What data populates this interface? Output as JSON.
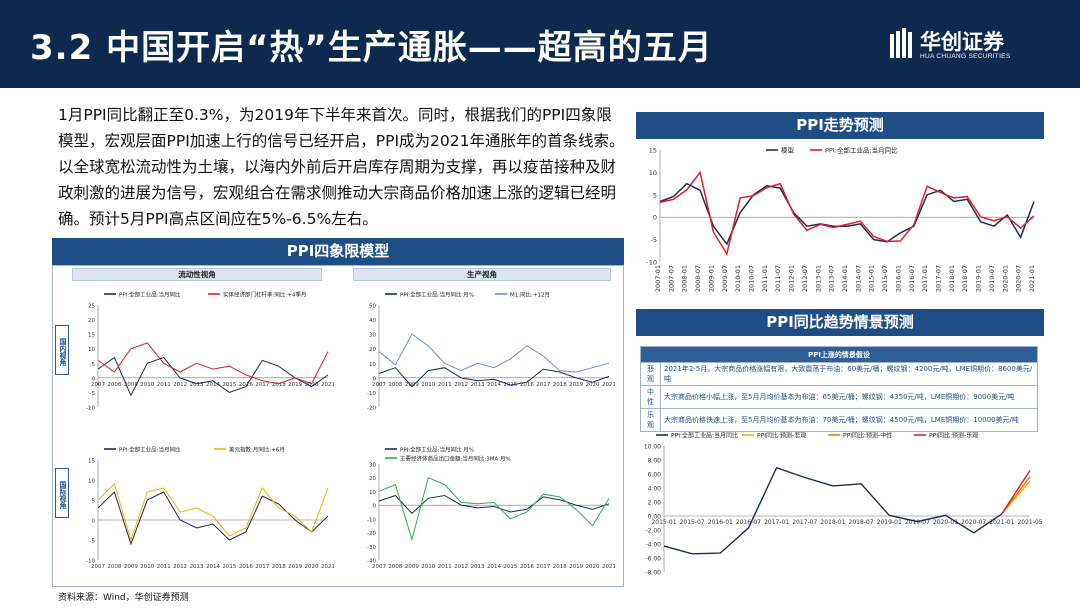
{
  "header": {
    "title": "3.2 中国开启“热”生产通胀——超高的五月",
    "logo_cn": "华创证券",
    "logo_en": "HUA CHUANG SECURITIES"
  },
  "body_text": "1月PPI同比翻正至0.3%，为2019年下半年来首次。同时，根据我们的PPI四象限模型，宏观层面PPI加速上行的信号已经开启，PPI成为2021年通胀年的首条线索。以全球宽松流动性为土壤，以海内外前后开启库存周期为支撑，再以疫苗接种及财政刺激的进展为信号，宏观组合在需求侧推动大宗商品价格加速上涨的逻辑已经明确。预计5月PPI高点区间应在5%-6.5%左右。",
  "quad": {
    "head": "PPI四象限模型",
    "col_heads": [
      "流动性视角",
      "生产视角"
    ],
    "row_labels": [
      "国内视角",
      "国际视角"
    ]
  },
  "trend": {
    "head": "PPI走势预测"
  },
  "scenario": {
    "head": "PPI同比趋势情景预测",
    "table_title": "PPI上涨的情景假设",
    "rows": [
      {
        "label": "悲观",
        "text": "2021年2-5月，大宗商品价格涨幅有限，大致震荡于布油：60美元/桶；螺纹钢：4200元/吨，LME铜期价：8600美元/吨"
      },
      {
        "label": "中性",
        "text": "大宗商品价格小幅上涨，至5月月均价基本为布油：65美元/桶；螺纹钢：4350元/吨，LME铜期价：9000美元/吨"
      },
      {
        "label": "乐观",
        "text": "大宗商品价格快速上涨，至5月月均价基本为布油：70美元/桶；螺纹钢：4500元/吨，LME铜期价：10000美元/吨"
      }
    ]
  },
  "source": "资料来源：Wind，华创证券预测",
  "chart_data": [
    {
      "type": "line",
      "title": "PPI走势预测",
      "x": [
        "2007-01",
        "2007-07",
        "2008-01",
        "2008-07",
        "2009-01",
        "2009-07",
        "2010-01",
        "2010-07",
        "2011-01",
        "2011-07",
        "2012-01",
        "2012-07",
        "2013-01",
        "2013-07",
        "2014-01",
        "2014-07",
        "2015-01",
        "2015-07",
        "2016-01",
        "2016-07",
        "2017-01",
        "2017-07",
        "2018-01",
        "2018-07",
        "2019-01",
        "2019-07",
        "2020-01",
        "2020-07",
        "2021-01"
      ],
      "ylim": [
        -10,
        15
      ],
      "yticks": [
        -10,
        -5,
        0,
        5,
        10,
        15
      ],
      "legend_position": "top",
      "series": [
        {
          "name": "模型",
          "color": "#1a2b5c",
          "values": [
            3.5,
            4.6,
            7.5,
            6.0,
            -2.0,
            -6.0,
            1.0,
            5.0,
            7.0,
            6.5,
            1.0,
            -2.0,
            -1.5,
            -2.0,
            -2.0,
            -1.5,
            -5.0,
            -5.5,
            -3.5,
            -2.0,
            5.0,
            6.0,
            3.5,
            4.0,
            -1.0,
            -2.0,
            0.5,
            -4.5,
            3.5
          ]
        },
        {
          "name": "PPI:全部工业品:当月同比",
          "color": "#e0202a",
          "values": [
            3.3,
            4.0,
            6.1,
            10.0,
            -3.3,
            -8.2,
            4.3,
            4.8,
            6.6,
            7.5,
            0.7,
            -2.9,
            -1.6,
            -2.3,
            -1.6,
            -0.9,
            -4.3,
            -5.4,
            -5.3,
            -1.7,
            6.9,
            5.5,
            4.3,
            4.6,
            0.1,
            -0.8,
            0.1,
            -2.4,
            0.3
          ]
        }
      ]
    },
    {
      "type": "line",
      "title": "",
      "legend_position": "top",
      "x": [
        "2007",
        "2008",
        "2009",
        "2010",
        "2011",
        "2012",
        "2013",
        "2014",
        "2015",
        "2016",
        "2017",
        "2018",
        "2019",
        "2020",
        "2021"
      ],
      "ylim": [
        -10,
        25
      ],
      "yticks": [
        -10,
        -5,
        0,
        5,
        10,
        15,
        20,
        25
      ],
      "series": [
        {
          "name": "PPI:全部工业品:当月同比",
          "color": "#1a2b5c",
          "values": [
            3,
            7,
            -6,
            5,
            7,
            0,
            -2,
            -1,
            -5,
            -3,
            6,
            4,
            0,
            -3,
            1
          ]
        },
        {
          "name": "实体经济部门杠杆率:同比:+4季月",
          "color": "#e0202a",
          "values": [
            6,
            2,
            10,
            12,
            5,
            2,
            5,
            3,
            4,
            1,
            -1,
            -2,
            0,
            -2,
            9
          ]
        }
      ]
    },
    {
      "type": "line",
      "title": "",
      "legend_position": "top",
      "x": [
        "2007",
        "2008",
        "2009",
        "2010",
        "2011",
        "2012",
        "2013",
        "2014",
        "2015",
        "2016",
        "2017",
        "2018",
        "2019",
        "2020",
        "2021"
      ],
      "ylim": [
        -20,
        50
      ],
      "yticks": [
        -20,
        -10,
        0,
        10,
        20,
        30,
        40,
        50
      ],
      "series": [
        {
          "name": "PPI:全部工业品:当月同比 月%",
          "color": "#1a2b5c",
          "values": [
            3,
            7,
            -6,
            5,
            7,
            0,
            -2,
            -1,
            -5,
            -3,
            6,
            4,
            0,
            -3,
            1
          ]
        },
        {
          "name": "M1:同比:+12月",
          "color": "#6f8fd1",
          "values": [
            18,
            9,
            30,
            22,
            10,
            5,
            10,
            7,
            13,
            22,
            15,
            5,
            4,
            7,
            10
          ]
        }
      ]
    },
    {
      "type": "line",
      "title": "",
      "legend_position": "top",
      "x": [
        "2007",
        "2008",
        "2009",
        "2010",
        "2011",
        "2012",
        "2013",
        "2014",
        "2015",
        "2016",
        "2017",
        "2018",
        "2019",
        "2020",
        "2021"
      ],
      "ylim": [
        -10,
        15
      ],
      "yticks": [
        -10,
        -5,
        0,
        5,
        10,
        15
      ],
      "series": [
        {
          "name": "PPI:全部工业品:当月同比",
          "color": "#1a2b5c",
          "values": [
            3,
            7,
            -6,
            5,
            7,
            0,
            -2,
            -1,
            -5,
            -3,
            6,
            4,
            0,
            -3,
            1
          ]
        },
        {
          "name": "美元指数:月同比:+6月",
          "color": "#f0b400",
          "values": [
            5,
            9,
            -5,
            7,
            8,
            2,
            3,
            1,
            -4,
            -2,
            8,
            3,
            1,
            -3,
            8
          ]
        }
      ]
    },
    {
      "type": "line",
      "title": "",
      "legend_position": "top",
      "x": [
        "2007",
        "2008",
        "2009",
        "2010",
        "2011",
        "2012",
        "2013",
        "2014",
        "2015",
        "2016",
        "2017",
        "2018",
        "2019",
        "2020",
        "2021"
      ],
      "ylim": [
        -40,
        30
      ],
      "yticks": [
        -40,
        -30,
        -20,
        -10,
        0,
        10,
        20,
        30
      ],
      "series": [
        {
          "name": "PPI:全部工业品:当月同比 月%",
          "color": "#1a2b5c",
          "values": [
            3,
            7,
            -6,
            5,
            7,
            0,
            -2,
            -1,
            -5,
            -3,
            6,
            4,
            0,
            -3,
            1
          ]
        },
        {
          "name": "主要经济体商品出口金额:当月同比:3MA 月%",
          "color": "#2bb24c",
          "values": [
            10,
            15,
            -25,
            20,
            15,
            2,
            1,
            2,
            -10,
            -5,
            8,
            6,
            -3,
            -15,
            5
          ]
        }
      ]
    },
    {
      "type": "line",
      "title": "",
      "legend_position": "top",
      "x": [
        "2015-01",
        "2015-07",
        "2016-01",
        "2016-07",
        "2017-01",
        "2017-07",
        "2018-01",
        "2018-07",
        "2019-01",
        "2019-07",
        "2020-01",
        "2020-07",
        "2021-01",
        "2021-05"
      ],
      "ylim": [
        -8,
        10
      ],
      "yticks": [
        -8,
        -6,
        -4,
        -2,
        0,
        2,
        4,
        6,
        8,
        10
      ],
      "series": [
        {
          "name": "PPI:全部工业品:当月同比",
          "color": "#1a2b5c",
          "values": [
            -4.3,
            -5.4,
            -5.3,
            -1.7,
            6.9,
            5.5,
            4.3,
            4.6,
            0.1,
            -0.8,
            0.1,
            -2.4,
            0.3,
            null
          ]
        },
        {
          "name": "PPI同比:预测-悲观",
          "color": "#f0b400",
          "values": [
            null,
            null,
            null,
            null,
            null,
            null,
            null,
            null,
            null,
            null,
            null,
            null,
            0.3,
            5.0
          ]
        },
        {
          "name": "PPI同比:预测-中性",
          "color": "#f07a00",
          "values": [
            null,
            null,
            null,
            null,
            null,
            null,
            null,
            null,
            null,
            null,
            null,
            null,
            0.3,
            5.6
          ]
        },
        {
          "name": "PPI同比:预测-乐观",
          "color": "#d0202a",
          "values": [
            null,
            null,
            null,
            null,
            null,
            null,
            null,
            null,
            null,
            null,
            null,
            null,
            0.3,
            6.5
          ]
        }
      ]
    }
  ]
}
